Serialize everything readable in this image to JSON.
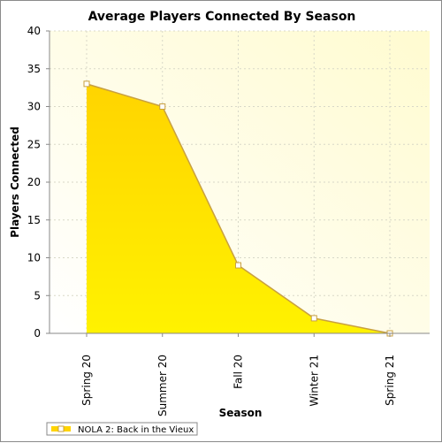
{
  "chart_data": {
    "type": "area",
    "title": "Average Players Connected By Season",
    "xlabel": "Season",
    "ylabel": "Players Connected",
    "categories": [
      "Spring 20",
      "Summer 20",
      "Fall 20",
      "Winter 21",
      "Spring 21"
    ],
    "series": [
      {
        "name": "NOLA 2: Back in the Vieux",
        "values": [
          33,
          30,
          9,
          2,
          0
        ]
      }
    ],
    "ylim": [
      0,
      40
    ],
    "yticks": [
      0,
      5,
      10,
      15,
      20,
      25,
      30,
      35,
      40
    ],
    "grid": true,
    "legend_position": "bottom-left",
    "colors": {
      "fill_top": "#ffd400",
      "fill_bottom": "#fff200",
      "line": "#c8a040",
      "marker_fill": "#ffffff",
      "plot_bg_light": "#ffffff",
      "plot_bg_tint": "#fffbd0",
      "grid": "#d8d8c8"
    }
  }
}
